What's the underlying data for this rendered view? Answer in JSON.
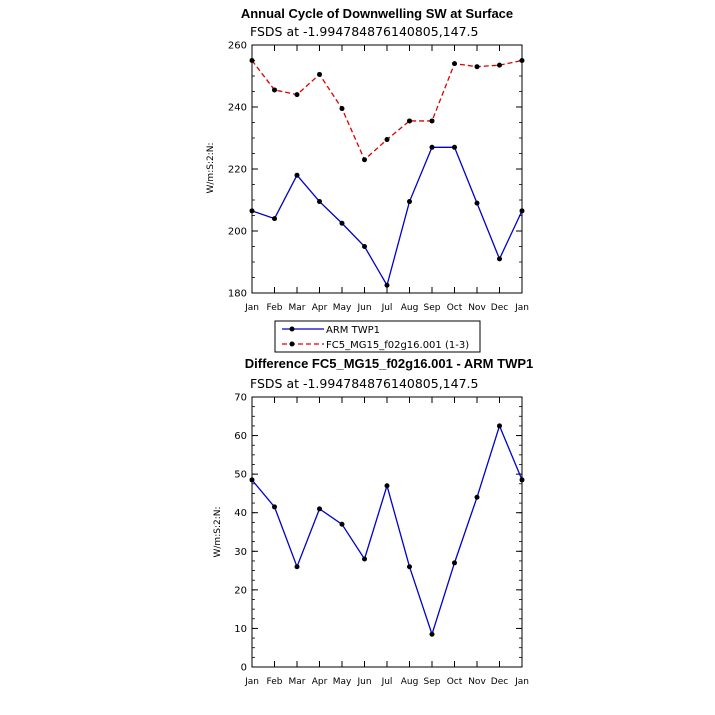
{
  "chart_data": [
    {
      "type": "line",
      "title": "Annual Cycle of Downwelling SW at Surface",
      "subtitle": "FSDS at -1.994784876140805,147.5",
      "ylabel": "W/m:S:2:N:",
      "xlabel": "",
      "ylim": [
        180,
        260
      ],
      "yticks": [
        180,
        200,
        220,
        240,
        260
      ],
      "categories": [
        "Jan",
        "Feb",
        "Mar",
        "Apr",
        "May",
        "Jun",
        "Jul",
        "Aug",
        "Sep",
        "Oct",
        "Nov",
        "Dec",
        "Jan"
      ],
      "series": [
        {
          "name": "ARM TWP1",
          "color": "#0000cc",
          "dash": "solid",
          "values": [
            206.5,
            204,
            218,
            209.5,
            202.5,
            195,
            182.5,
            209.5,
            227,
            227,
            209,
            191,
            206.5
          ]
        },
        {
          "name": "FC5_MG15_f02g16.001 (1-3)",
          "color": "#dd0000",
          "dash": "dashed",
          "values": [
            255,
            245.5,
            244,
            250.5,
            239.5,
            223,
            229.5,
            235.5,
            235.5,
            254,
            253,
            253.5,
            255
          ]
        }
      ],
      "legend_placement": "bottom-center"
    },
    {
      "type": "line",
      "title": "Difference FC5_MG15_f02g16.001 - ARM TWP1",
      "subtitle": "FSDS at -1.994784876140805,147.5",
      "ylabel": "W/m:S:2:N:",
      "xlabel": "",
      "ylim": [
        0,
        70
      ],
      "yticks": [
        0,
        10,
        20,
        30,
        40,
        50,
        60,
        70
      ],
      "categories": [
        "Jan",
        "Feb",
        "Mar",
        "Apr",
        "May",
        "Jun",
        "Jul",
        "Aug",
        "Sep",
        "Oct",
        "Nov",
        "Dec",
        "Jan"
      ],
      "series": [
        {
          "color": "#0000cc",
          "dash": "solid",
          "values": [
            48.5,
            41.5,
            26,
            41,
            37,
            28,
            47,
            26,
            8.5,
            27,
            44,
            62.5,
            48.5
          ]
        }
      ]
    }
  ]
}
